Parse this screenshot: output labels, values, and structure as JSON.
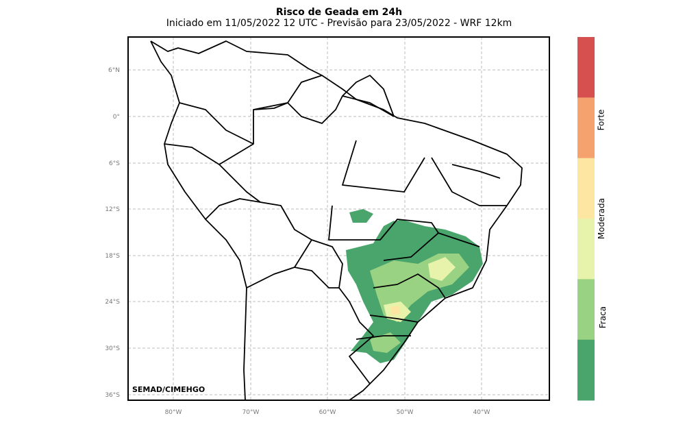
{
  "title": "Risco de Geada em 24h",
  "subtitle": "Iniciado em 11/05/2022 12 UTC - Previsão para 23/05/2022 - WRF 12km",
  "lat_ticks": [
    "6°N",
    "0°",
    "6°S",
    "12°S",
    "18°S",
    "24°S",
    "30°S",
    "36°S"
  ],
  "lon_ticks": [
    "80°W",
    "70°W",
    "60°W",
    "50°W",
    "40°W"
  ],
  "credit": "SEMAD/CIMEHGO",
  "colorbar": {
    "colors": [
      "#d6504f",
      "#f6a26f",
      "#fde5a2",
      "#e7f3aa",
      "#9ad283",
      "#4aa56c"
    ],
    "labels": {
      "forte": "Forte",
      "moderada": "Moderada",
      "fraca": "Fraca"
    }
  }
}
